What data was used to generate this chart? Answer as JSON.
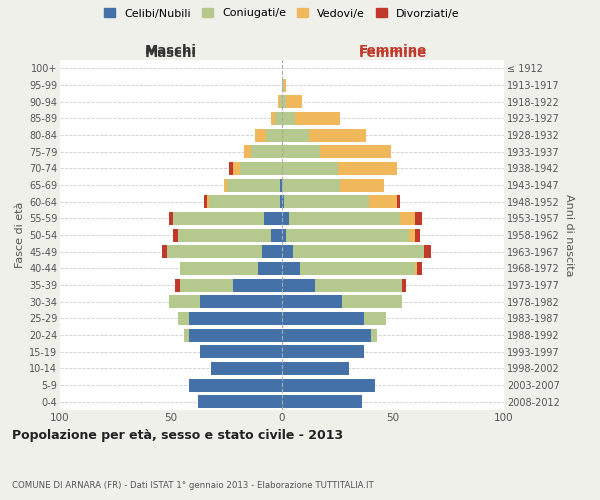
{
  "age_groups": [
    "0-4",
    "5-9",
    "10-14",
    "15-19",
    "20-24",
    "25-29",
    "30-34",
    "35-39",
    "40-44",
    "45-49",
    "50-54",
    "55-59",
    "60-64",
    "65-69",
    "70-74",
    "75-79",
    "80-84",
    "85-89",
    "90-94",
    "95-99",
    "100+"
  ],
  "birth_years": [
    "2008-2012",
    "2003-2007",
    "1998-2002",
    "1993-1997",
    "1988-1992",
    "1983-1987",
    "1978-1982",
    "1973-1977",
    "1968-1972",
    "1963-1967",
    "1958-1962",
    "1953-1957",
    "1948-1952",
    "1943-1947",
    "1938-1942",
    "1933-1937",
    "1928-1932",
    "1923-1927",
    "1918-1922",
    "1913-1917",
    "≤ 1912"
  ],
  "colors": {
    "celibe": "#4472a8",
    "coniugato": "#b5c98e",
    "vedovo": "#f0b85a",
    "divorziato": "#c0392b"
  },
  "males": {
    "celibe": [
      38,
      42,
      32,
      37,
      42,
      42,
      37,
      22,
      11,
      9,
      5,
      8,
      1,
      1,
      0,
      0,
      0,
      0,
      0,
      0,
      0
    ],
    "coniugato": [
      0,
      0,
      0,
      0,
      2,
      5,
      14,
      24,
      35,
      43,
      42,
      41,
      32,
      24,
      19,
      14,
      7,
      3,
      1,
      0,
      0
    ],
    "vedovo": [
      0,
      0,
      0,
      0,
      0,
      0,
      0,
      0,
      0,
      0,
      0,
      0,
      1,
      1,
      3,
      3,
      5,
      2,
      1,
      0,
      0
    ],
    "divorziato": [
      0,
      0,
      0,
      0,
      0,
      0,
      0,
      2,
      0,
      2,
      2,
      2,
      1,
      0,
      2,
      0,
      0,
      0,
      0,
      0,
      0
    ]
  },
  "females": {
    "nubile": [
      36,
      42,
      30,
      37,
      40,
      37,
      27,
      15,
      8,
      5,
      2,
      3,
      1,
      0,
      0,
      0,
      0,
      0,
      0,
      0,
      0
    ],
    "coniugata": [
      0,
      0,
      0,
      0,
      3,
      10,
      27,
      39,
      52,
      59,
      55,
      50,
      38,
      26,
      25,
      17,
      12,
      6,
      2,
      1,
      0
    ],
    "vedova": [
      0,
      0,
      0,
      0,
      0,
      0,
      0,
      0,
      1,
      0,
      3,
      7,
      13,
      20,
      27,
      32,
      26,
      20,
      7,
      1,
      0
    ],
    "divorziata": [
      0,
      0,
      0,
      0,
      0,
      0,
      0,
      2,
      2,
      3,
      2,
      3,
      1,
      0,
      0,
      0,
      0,
      0,
      0,
      0,
      0
    ]
  },
  "xlim": 100,
  "title": "Popolazione per età, sesso e stato civile - 2013",
  "subtitle": "COMUNE DI ARNARA (FR) - Dati ISTAT 1° gennaio 2013 - Elaborazione TUTTITALIA.IT",
  "ylabel_left": "Fasce di età",
  "ylabel_right": "Anni di nascita",
  "xlabel_left": "Maschi",
  "xlabel_right": "Femmine",
  "bg_color": "#f0f0eb",
  "plot_bg": "#ffffff",
  "legend_labels": [
    "Celibi/Nubili",
    "Coniugati/e",
    "Vedovi/e",
    "Divorziati/e"
  ]
}
